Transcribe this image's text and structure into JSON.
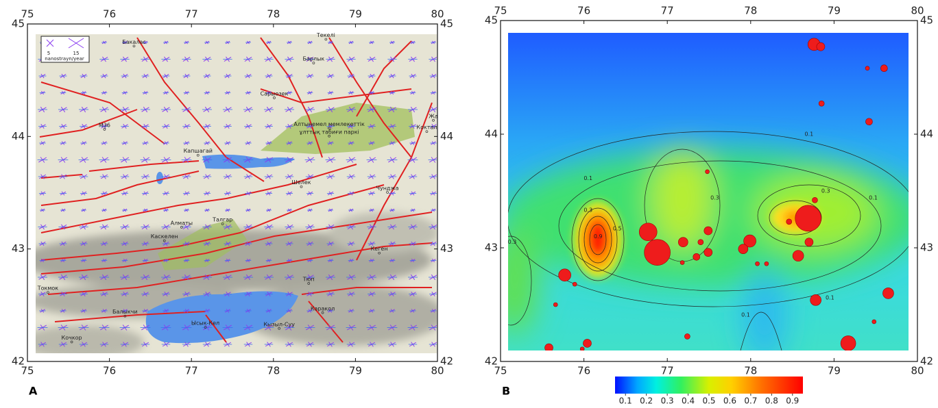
{
  "panel_a": {
    "label": "A",
    "xlim": [
      75,
      80
    ],
    "ylim": [
      42,
      45
    ],
    "xticks": [
      75,
      76,
      77,
      78,
      79,
      80
    ],
    "yticks": [
      42,
      43,
      44,
      45
    ],
    "legend": {
      "scales": [
        5,
        15
      ],
      "unit": "nanostrayn/year"
    },
    "places": [
      {
        "name": "Бакалас",
        "lon": 76.3,
        "lat": 44.84
      },
      {
        "name": "Текелі",
        "lon": 78.64,
        "lat": 44.9
      },
      {
        "name": "Барлык",
        "lon": 78.49,
        "lat": 44.69
      },
      {
        "name": "Сарыозек",
        "lon": 78.01,
        "lat": 44.38
      },
      {
        "name": "М36",
        "lon": 75.94,
        "lat": 44.1
      },
      {
        "name": "Алтынемел мемлекеттік",
        "lon": 78.68,
        "lat": 44.11
      },
      {
        "name": "ұлттық табиғи паркі",
        "lon": 78.68,
        "lat": 44.04
      },
      {
        "name": "Жа",
        "lon": 79.95,
        "lat": 44.18
      },
      {
        "name": "Коктал",
        "lon": 79.87,
        "lat": 44.08
      },
      {
        "name": "Капшагай",
        "lon": 77.08,
        "lat": 43.87
      },
      {
        "name": "Шелек",
        "lon": 78.34,
        "lat": 43.59
      },
      {
        "name": "Чунджа",
        "lon": 79.39,
        "lat": 43.54
      },
      {
        "name": "Талгар",
        "lon": 77.38,
        "lat": 43.26
      },
      {
        "name": "Алматы",
        "lon": 76.88,
        "lat": 43.23
      },
      {
        "name": "Каскелен",
        "lon": 76.67,
        "lat": 43.11
      },
      {
        "name": "Кеген",
        "lon": 79.29,
        "lat": 43.0
      },
      {
        "name": "Токмок",
        "lon": 75.25,
        "lat": 42.65
      },
      {
        "name": "Тюп",
        "lon": 78.43,
        "lat": 42.73
      },
      {
        "name": "Балыкчи",
        "lon": 76.19,
        "lat": 42.44
      },
      {
        "name": "Каракол",
        "lon": 78.6,
        "lat": 42.47
      },
      {
        "name": "Ысык-Кел",
        "lon": 77.17,
        "lat": 42.34
      },
      {
        "name": "Кызыл-Суу",
        "lon": 78.07,
        "lat": 42.33
      },
      {
        "name": "Кочкор",
        "lon": 75.54,
        "lat": 42.21
      }
    ]
  },
  "panel_b": {
    "label": "B",
    "xlim": [
      75,
      80
    ],
    "ylim": [
      42,
      45
    ],
    "xticks": [
      75,
      76,
      77,
      78,
      79,
      80
    ],
    "yticks": [
      42,
      43,
      44,
      45
    ],
    "events": [
      {
        "lon": 78.76,
        "lat": 44.79,
        "size": 9
      },
      {
        "lon": 78.84,
        "lat": 44.77,
        "size": 6
      },
      {
        "lon": 79.4,
        "lat": 44.58,
        "size": 3
      },
      {
        "lon": 79.6,
        "lat": 44.58,
        "size": 5
      },
      {
        "lon": 78.85,
        "lat": 44.27,
        "size": 4
      },
      {
        "lon": 79.42,
        "lat": 44.11,
        "size": 5
      },
      {
        "lon": 77.48,
        "lat": 43.67,
        "size": 3
      },
      {
        "lon": 78.77,
        "lat": 43.42,
        "size": 4
      },
      {
        "lon": 78.69,
        "lat": 43.26,
        "size": 19
      },
      {
        "lon": 78.46,
        "lat": 43.23,
        "size": 4
      },
      {
        "lon": 78.7,
        "lat": 43.05,
        "size": 6
      },
      {
        "lon": 76.77,
        "lat": 43.14,
        "size": 13
      },
      {
        "lon": 76.88,
        "lat": 42.96,
        "size": 19
      },
      {
        "lon": 77.99,
        "lat": 43.06,
        "size": 9
      },
      {
        "lon": 77.91,
        "lat": 42.99,
        "size": 7
      },
      {
        "lon": 77.19,
        "lat": 43.05,
        "size": 7
      },
      {
        "lon": 77.49,
        "lat": 43.15,
        "size": 6
      },
      {
        "lon": 77.4,
        "lat": 43.05,
        "size": 4
      },
      {
        "lon": 77.49,
        "lat": 42.96,
        "size": 6
      },
      {
        "lon": 77.35,
        "lat": 42.92,
        "size": 5
      },
      {
        "lon": 77.18,
        "lat": 42.87,
        "size": 3
      },
      {
        "lon": 78.08,
        "lat": 42.86,
        "size": 3
      },
      {
        "lon": 78.19,
        "lat": 42.86,
        "size": 3
      },
      {
        "lon": 78.57,
        "lat": 42.93,
        "size": 8
      },
      {
        "lon": 75.77,
        "lat": 42.76,
        "size": 9
      },
      {
        "lon": 75.89,
        "lat": 42.68,
        "size": 3
      },
      {
        "lon": 75.66,
        "lat": 42.5,
        "size": 3
      },
      {
        "lon": 78.78,
        "lat": 42.54,
        "size": 8
      },
      {
        "lon": 79.65,
        "lat": 42.6,
        "size": 8
      },
      {
        "lon": 79.48,
        "lat": 42.35,
        "size": 3
      },
      {
        "lon": 77.24,
        "lat": 42.22,
        "size": 4
      },
      {
        "lon": 76.04,
        "lat": 42.16,
        "size": 6
      },
      {
        "lon": 75.98,
        "lat": 42.11,
        "size": 3
      },
      {
        "lon": 75.58,
        "lat": 42.12,
        "size": 6
      },
      {
        "lon": 79.17,
        "lat": 42.16,
        "size": 11
      }
    ],
    "contour_labels": [
      {
        "level": 0.1,
        "lon": 78.7,
        "lat": 44.0
      },
      {
        "level": 0.1,
        "lon": 76.05,
        "lat": 43.61
      },
      {
        "level": 0.3,
        "lon": 77.57,
        "lat": 43.44
      },
      {
        "level": 0.3,
        "lon": 76.05,
        "lat": 43.33
      },
      {
        "level": 0.5,
        "lon": 76.4,
        "lat": 43.17
      },
      {
        "level": 0.9,
        "lon": 76.17,
        "lat": 43.1
      },
      {
        "level": 0.3,
        "lon": 78.9,
        "lat": 43.5
      },
      {
        "level": 0.1,
        "lon": 79.47,
        "lat": 43.44
      },
      {
        "level": 0.3,
        "lon": 75.14,
        "lat": 43.05
      },
      {
        "level": 0.1,
        "lon": 78.95,
        "lat": 42.56
      },
      {
        "level": 0.1,
        "lon": 77.94,
        "lat": 42.41
      }
    ],
    "colorbar": {
      "lim": [
        0.05,
        0.95
      ],
      "ticks": [
        0.1,
        0.2,
        0.3,
        0.4,
        0.5,
        0.6,
        0.7,
        0.8,
        0.9
      ]
    }
  }
}
